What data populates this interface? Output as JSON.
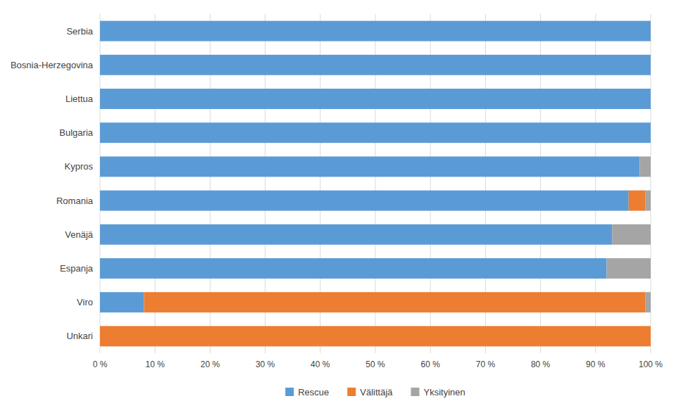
{
  "chart_data": {
    "type": "bar",
    "orientation": "horizontal",
    "stacked": true,
    "categories": [
      "Serbia",
      "Bosnia-Herzegovina",
      "Liettua",
      "Bulgaria",
      "Kypros",
      "Romania",
      "Venäjä",
      "Espanja",
      "Viro",
      "Unkari"
    ],
    "series": [
      {
        "name": "Rescue",
        "color": "#5B9BD5",
        "values": [
          1.0,
          1.0,
          1.0,
          1.0,
          0.98,
          0.96,
          0.93,
          0.92,
          0.08,
          0.0
        ]
      },
      {
        "name": "Välittäjä",
        "color": "#ED7D31",
        "values": [
          0.0,
          0.0,
          0.0,
          0.0,
          0.0,
          0.03,
          0.0,
          0.0,
          0.91,
          1.0
        ]
      },
      {
        "name": "Yksityinen",
        "color": "#A5A5A5",
        "values": [
          0.0,
          0.0,
          0.0,
          0.0,
          0.02,
          0.01,
          0.07,
          0.08,
          0.01,
          0.0
        ]
      }
    ],
    "xlim": [
      0,
      1
    ],
    "xticks": [
      {
        "value": 0,
        "label": "0 %"
      },
      {
        "value": 0.1,
        "label": "10 %"
      },
      {
        "value": 0.2,
        "label": "20 %"
      },
      {
        "value": 0.3,
        "label": "30 %"
      },
      {
        "value": 0.4,
        "label": "40 %"
      },
      {
        "value": 0.5,
        "label": "50 %"
      },
      {
        "value": 0.6,
        "label": "60 %"
      },
      {
        "value": 0.7,
        "label": "70 %"
      },
      {
        "value": 0.8,
        "label": "80 %"
      },
      {
        "value": 0.9,
        "label": "90 %"
      },
      {
        "value": 1,
        "label": "100 %"
      }
    ],
    "grid": true,
    "legend": "bottom"
  }
}
